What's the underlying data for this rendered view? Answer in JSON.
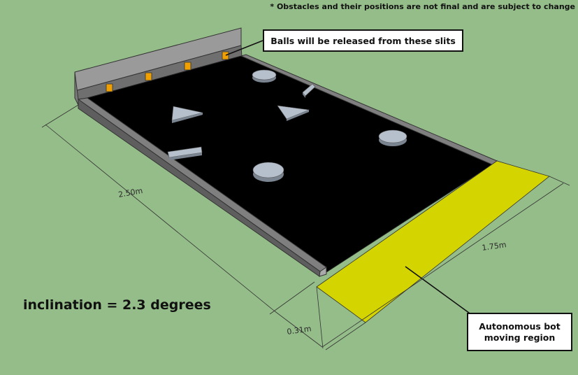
{
  "note": "* Obstacles and their positions are not final and are subject to change",
  "callouts": {
    "slits": "Balls will be released from these slits",
    "bot_region": "Autonomous bot moving region"
  },
  "inclination_label": "inclination = 2.3 degrees",
  "dimensions": {
    "length": "2.50m",
    "width": "1.75m",
    "bot_zone_depth": "0.31m"
  },
  "colors": {
    "background": "#95bd89",
    "board": "#000000",
    "wall": "#8a8a8a",
    "slit": "#f0a000",
    "bot_zone": "#d4d400",
    "obstacle": "#aab4c0"
  }
}
